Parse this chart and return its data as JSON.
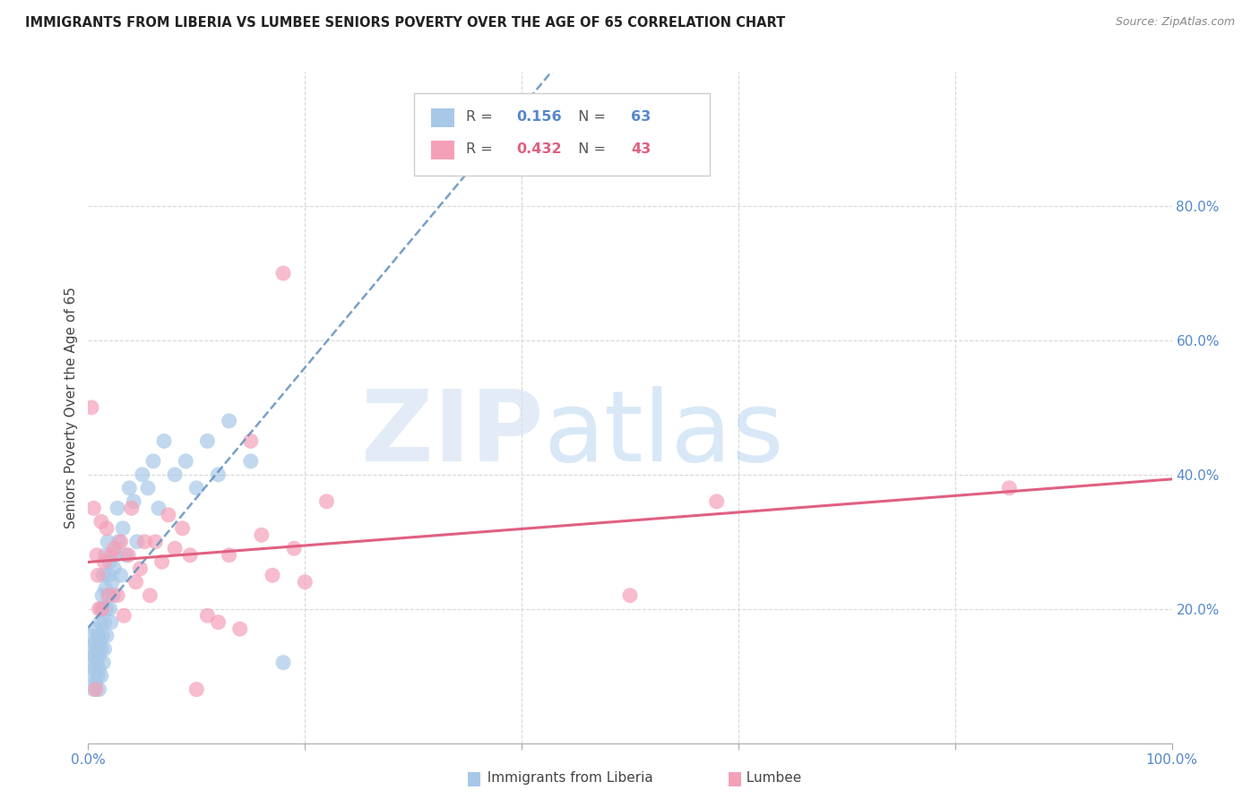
{
  "title": "IMMIGRANTS FROM LIBERIA VS LUMBEE SENIORS POVERTY OVER THE AGE OF 65 CORRELATION CHART",
  "source": "Source: ZipAtlas.com",
  "ylabel": "Seniors Poverty Over the Age of 65",
  "R1": "0.156",
  "N1": "63",
  "R2": "0.432",
  "N2": "43",
  "color_blue": "#a8c8e8",
  "color_pink": "#f4a0b8",
  "line_blue": "#6090c0",
  "line_pink": "#e06080",
  "background": "#ffffff",
  "grid_color": "#d8d8d8",
  "legend_label1": "Immigrants from Liberia",
  "legend_label2": "Lumbee",
  "blue_scatter_x": [
    0.2,
    0.3,
    0.3,
    0.4,
    0.5,
    0.5,
    0.6,
    0.6,
    0.7,
    0.7,
    0.8,
    0.8,
    0.9,
    0.9,
    1.0,
    1.0,
    1.0,
    1.1,
    1.1,
    1.2,
    1.2,
    1.2,
    1.3,
    1.3,
    1.4,
    1.4,
    1.5,
    1.5,
    1.6,
    1.6,
    1.7,
    1.7,
    1.8,
    1.8,
    1.9,
    2.0,
    2.0,
    2.1,
    2.2,
    2.3,
    2.4,
    2.5,
    2.7,
    2.8,
    3.0,
    3.2,
    3.5,
    3.8,
    4.2,
    4.5,
    5.0,
    5.5,
    6.0,
    6.5,
    7.0,
    8.0,
    9.0,
    10.0,
    11.0,
    12.0,
    13.0,
    15.0,
    18.0
  ],
  "blue_scatter_y": [
    14.0,
    16.0,
    12.0,
    10.0,
    13.0,
    8.0,
    15.0,
    11.0,
    9.0,
    17.0,
    12.0,
    14.0,
    10.0,
    16.0,
    13.0,
    11.0,
    8.0,
    15.0,
    18.0,
    14.0,
    20.0,
    10.0,
    22.0,
    16.0,
    12.0,
    25.0,
    14.0,
    18.0,
    23.0,
    28.0,
    20.0,
    16.0,
    30.0,
    22.0,
    25.0,
    20.0,
    27.0,
    18.0,
    24.0,
    22.0,
    26.0,
    28.0,
    35.0,
    30.0,
    25.0,
    32.0,
    28.0,
    38.0,
    36.0,
    30.0,
    40.0,
    38.0,
    42.0,
    35.0,
    45.0,
    40.0,
    42.0,
    38.0,
    45.0,
    40.0,
    48.0,
    42.0,
    12.0
  ],
  "pink_scatter_x": [
    0.3,
    0.5,
    0.7,
    0.8,
    0.9,
    1.0,
    1.2,
    1.3,
    1.5,
    1.7,
    1.9,
    2.1,
    2.4,
    2.7,
    3.0,
    3.3,
    3.7,
    4.0,
    4.4,
    4.8,
    5.2,
    5.7,
    6.2,
    6.8,
    7.4,
    8.0,
    8.7,
    9.4,
    10.0,
    11.0,
    12.0,
    13.0,
    14.0,
    15.0,
    16.0,
    17.0,
    18.0,
    19.0,
    20.0,
    22.0,
    50.0,
    58.0,
    85.0
  ],
  "pink_scatter_y": [
    50.0,
    35.0,
    8.0,
    28.0,
    25.0,
    20.0,
    33.0,
    20.0,
    27.0,
    32.0,
    22.0,
    28.0,
    29.0,
    22.0,
    30.0,
    19.0,
    28.0,
    35.0,
    24.0,
    26.0,
    30.0,
    22.0,
    30.0,
    27.0,
    34.0,
    29.0,
    32.0,
    28.0,
    8.0,
    19.0,
    18.0,
    28.0,
    17.0,
    45.0,
    31.0,
    25.0,
    70.0,
    29.0,
    24.0,
    36.0,
    22.0,
    36.0,
    38.0
  ]
}
